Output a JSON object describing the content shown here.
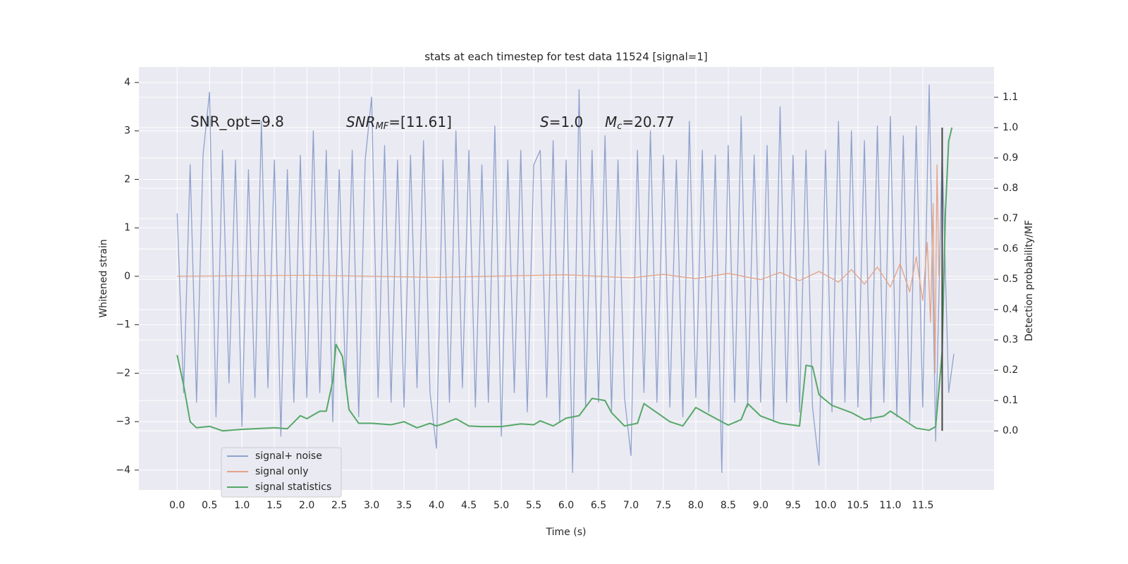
{
  "chart_data": {
    "type": "line",
    "title": "stats at each timestep for test data 11524 [signal=1]",
    "x_label": "Time (s)",
    "y_label": "Whitened strain",
    "y2_label": "Detection probability/MF",
    "annotations": [
      {
        "text": "SNR_opt=9.8"
      },
      {
        "text": "SNR",
        "sub": "MF",
        "rest": "=[11.61]"
      },
      {
        "text": "S",
        "rest": "=1.0"
      },
      {
        "text": "M",
        "sub": "c",
        "rest": "=20.77"
      }
    ],
    "xlim": [
      -0.59,
      12.6
    ],
    "ylim": [
      -4.41,
      4.32
    ],
    "y2lim": [
      -0.195,
      1.2
    ],
    "xticks": [
      {
        "value": 0,
        "label": "0.0"
      },
      {
        "value": 0.5,
        "label": "0.5"
      },
      {
        "value": 1,
        "label": "1.0"
      },
      {
        "value": 1.5,
        "label": "1.5"
      },
      {
        "value": 2,
        "label": "2.0"
      },
      {
        "value": 2.5,
        "label": "2.5"
      },
      {
        "value": 3,
        "label": "3.0"
      },
      {
        "value": 3.5,
        "label": "3.5"
      },
      {
        "value": 4,
        "label": "4.0"
      },
      {
        "value": 4.5,
        "label": "4.5"
      },
      {
        "value": 5,
        "label": "5.0"
      },
      {
        "value": 5.5,
        "label": "5.5"
      },
      {
        "value": 6,
        "label": "6.0"
      },
      {
        "value": 6.5,
        "label": "6.5"
      },
      {
        "value": 7,
        "label": "7.0"
      },
      {
        "value": 7.5,
        "label": "7.5"
      },
      {
        "value": 8,
        "label": "8.0"
      },
      {
        "value": 8.5,
        "label": "8.5"
      },
      {
        "value": 9,
        "label": "9.0"
      },
      {
        "value": 9.5,
        "label": "9.5"
      },
      {
        "value": 10,
        "label": "10.0"
      },
      {
        "value": 10.5,
        "label": "10.5"
      },
      {
        "value": 11,
        "label": "11.0"
      },
      {
        "value": 11.5,
        "label": "11.5"
      }
    ],
    "yticks": [
      {
        "value": -4,
        "label": "−4"
      },
      {
        "value": -3,
        "label": "−3"
      },
      {
        "value": -2,
        "label": "−2"
      },
      {
        "value": -1,
        "label": "−1"
      },
      0,
      1,
      2,
      3,
      4
    ],
    "y2ticks": [
      {
        "value": 0,
        "label": "0.0"
      },
      {
        "value": 0.1,
        "label": "0.1"
      },
      {
        "value": 0.2,
        "label": "0.2"
      },
      {
        "value": 0.3,
        "label": "0.3"
      },
      {
        "value": 0.4,
        "label": "0.4"
      },
      {
        "value": 0.5,
        "label": "0.5"
      },
      {
        "value": 0.6,
        "label": "0.6"
      },
      {
        "value": 0.7,
        "label": "0.7"
      },
      {
        "value": 0.8,
        "label": "0.8"
      },
      {
        "value": 0.9,
        "label": "0.9"
      },
      {
        "value": 1,
        "label": "1.0"
      },
      {
        "value": 1.1,
        "label": "1.1"
      }
    ],
    "grid": true,
    "legend_loc": "lower left",
    "marker_line": {
      "x": 11.8,
      "from": 0,
      "to": 1,
      "axis": "y2",
      "color": "#444444"
    },
    "series": [
      {
        "name": "signal+ noise",
        "color": "#8fa2cd",
        "axis": "y",
        "x": [
          0,
          0.1,
          0.2,
          0.3,
          0.4,
          0.5,
          0.6,
          0.7,
          0.8,
          0.9,
          1,
          1.1,
          1.2,
          1.3,
          1.4,
          1.5,
          1.6,
          1.7,
          1.8,
          1.9,
          2,
          2.1,
          2.2,
          2.3,
          2.4,
          2.5,
          2.6,
          2.7,
          2.8,
          2.9,
          3,
          3.1,
          3.2,
          3.3,
          3.4,
          3.5,
          3.6,
          3.7,
          3.8,
          3.9,
          4,
          4.1,
          4.2,
          4.3,
          4.4,
          4.5,
          4.6,
          4.7,
          4.8,
          4.9,
          5,
          5.1,
          5.2,
          5.3,
          5.4,
          5.5,
          5.6,
          5.7,
          5.8,
          5.9,
          6,
          6.1,
          6.2,
          6.3,
          6.4,
          6.5,
          6.6,
          6.7,
          6.8,
          6.9,
          7,
          7.1,
          7.2,
          7.3,
          7.4,
          7.5,
          7.6,
          7.7,
          7.8,
          7.9,
          8,
          8.1,
          8.2,
          8.3,
          8.4,
          8.5,
          8.6,
          8.7,
          8.8,
          8.9,
          9,
          9.1,
          9.2,
          9.3,
          9.4,
          9.5,
          9.6,
          9.7,
          9.8,
          9.9,
          10,
          10.1,
          10.2,
          10.3,
          10.4,
          10.5,
          10.6,
          10.7,
          10.8,
          10.9,
          11,
          11.1,
          11.2,
          11.3,
          11.4,
          11.5,
          11.6,
          11.7,
          11.8,
          11.9,
          11.98
        ],
        "values": [
          1.3,
          -2.4,
          2.3,
          -2.6,
          2.5,
          3.8,
          -2.9,
          2.6,
          -2.2,
          2.4,
          -3.1,
          2.2,
          -2.5,
          3.2,
          -2.3,
          2.4,
          -3.3,
          2.2,
          -2.6,
          2.5,
          -2.5,
          3.0,
          -2.4,
          2.6,
          -3.0,
          2.2,
          -2.3,
          2.6,
          -2.9,
          2.4,
          3.7,
          -2.5,
          2.7,
          -2.6,
          2.4,
          -2.7,
          2.5,
          -2.3,
          2.8,
          -2.4,
          -3.55,
          2.4,
          -2.6,
          3.0,
          -2.3,
          2.6,
          -2.7,
          2.3,
          -2.6,
          3.1,
          -3.3,
          2.4,
          -2.4,
          2.6,
          -2.8,
          2.3,
          2.6,
          -2.5,
          2.8,
          -3.0,
          2.4,
          -4.05,
          3.85,
          -2.7,
          2.6,
          -2.6,
          2.9,
          -2.8,
          2.4,
          -2.5,
          -3.7,
          2.6,
          -2.4,
          3.0,
          -2.6,
          2.5,
          -2.7,
          2.4,
          -2.9,
          3.2,
          -2.5,
          2.6,
          -2.8,
          2.5,
          -4.05,
          2.7,
          -2.6,
          3.3,
          -2.7,
          2.5,
          -2.6,
          2.7,
          -3.0,
          3.5,
          -2.6,
          2.5,
          -2.8,
          2.6,
          -2.7,
          -3.9,
          2.6,
          -2.8,
          3.2,
          -2.6,
          3.0,
          -2.7,
          2.8,
          -3.0,
          3.1,
          -2.6,
          3.3,
          -2.9,
          2.9,
          -3.0,
          3.1,
          -2.7,
          3.95,
          -3.4,
          2.6,
          -2.4,
          -1.6
        ]
      },
      {
        "name": "signal only",
        "color": "#e3a387",
        "axis": "y",
        "x": [
          0,
          2,
          4,
          6,
          7,
          7.5,
          8,
          8.5,
          9,
          9.3,
          9.6,
          9.9,
          10.2,
          10.4,
          10.6,
          10.8,
          11,
          11.15,
          11.3,
          11.4,
          11.5,
          11.57,
          11.62,
          11.66,
          11.69,
          11.72,
          11.75
        ],
        "values": [
          0,
          0.02,
          -0.02,
          0.03,
          -0.03,
          0.04,
          -0.05,
          0.06,
          -0.07,
          0.08,
          -0.09,
          0.1,
          -0.12,
          0.14,
          -0.16,
          0.19,
          -0.22,
          0.26,
          -0.32,
          0.4,
          -0.5,
          0.7,
          -0.95,
          1.5,
          -2.0,
          2.3,
          0
        ]
      },
      {
        "name": "signal statistics",
        "color": "#55a868",
        "axis": "y2",
        "x": [
          0,
          0.1,
          0.2,
          0.3,
          0.5,
          0.7,
          1,
          1.5,
          1.7,
          1.9,
          2,
          2.2,
          2.3,
          2.4,
          2.45,
          2.55,
          2.65,
          2.8,
          3,
          3.3,
          3.5,
          3.7,
          3.9,
          4,
          4.1,
          4.3,
          4.5,
          4.7,
          5,
          5.3,
          5.5,
          5.6,
          5.8,
          6,
          6.2,
          6.4,
          6.6,
          6.7,
          6.9,
          7.1,
          7.2,
          7.4,
          7.6,
          7.8,
          8,
          8.2,
          8.5,
          8.7,
          8.8,
          9,
          9.3,
          9.6,
          9.7,
          9.8,
          9.9,
          10.1,
          10.4,
          10.6,
          10.9,
          11,
          11.2,
          11.4,
          11.6,
          11.7,
          11.8,
          11.85,
          11.9,
          11.95
        ],
        "values": [
          0.25,
          0.15,
          0.03,
          0.01,
          0.015,
          0,
          0.005,
          0.01,
          0.007,
          0.05,
          0.04,
          0.065,
          0.065,
          0.165,
          0.285,
          0.245,
          0.07,
          0.025,
          0.025,
          0.02,
          0.03,
          0.01,
          0.025,
          0.016,
          0.023,
          0.04,
          0.016,
          0.014,
          0.014,
          0.023,
          0.02,
          0.033,
          0.016,
          0.042,
          0.05,
          0.107,
          0.1,
          0.06,
          0.016,
          0.025,
          0.09,
          0.06,
          0.03,
          0.016,
          0.077,
          0.053,
          0.019,
          0.037,
          0.09,
          0.049,
          0.025,
          0.016,
          0.216,
          0.212,
          0.119,
          0.084,
          0.06,
          0.037,
          0.049,
          0.065,
          0.037,
          0.009,
          0.002,
          0.014,
          0.26,
          0.72,
          0.955,
          1.0
        ]
      }
    ]
  }
}
